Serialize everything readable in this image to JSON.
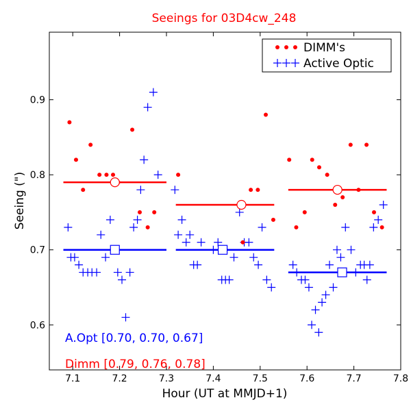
{
  "chart_data": {
    "type": "scatter",
    "title": "Seeings for 03D4cw_248",
    "xlabel": "Hour (UT at MMJD+1)",
    "ylabel": "Seeing (\")",
    "xlim": [
      7.05,
      7.8
    ],
    "ylim": [
      0.54,
      0.99
    ],
    "xticks": [
      7.1,
      7.2,
      7.3,
      7.4,
      7.5,
      7.6,
      7.7,
      7.8
    ],
    "xtick_labels": [
      "7.1",
      "7.2",
      "7.3",
      "7.4",
      "7.5",
      "7.6",
      "7.7",
      "7.8"
    ],
    "yticks": [
      0.6,
      0.7,
      0.8,
      0.9
    ],
    "ytick_labels": [
      "0.6",
      "0.7",
      "0.8",
      "0.9"
    ],
    "colors": {
      "dimm": "#ff0000",
      "aopt": "#0000ff"
    },
    "legend": {
      "position": "top-right",
      "entries": [
        "DIMM's",
        "Active Optic"
      ]
    },
    "annotations": {
      "aopt": "A.Opt [0.70, 0.70, 0.67]",
      "dimm": "Dimm [0.79, 0.76, 0.78]"
    },
    "series": [
      {
        "name": "DIMM's",
        "marker": "dot",
        "points": [
          [
            7.093,
            0.87
          ],
          [
            7.107,
            0.82
          ],
          [
            7.122,
            0.78
          ],
          [
            7.138,
            0.84
          ],
          [
            7.157,
            0.8
          ],
          [
            7.172,
            0.8
          ],
          [
            7.186,
            0.8
          ],
          [
            7.197,
            0.79
          ],
          [
            7.227,
            0.86
          ],
          [
            7.243,
            0.75
          ],
          [
            7.26,
            0.73
          ],
          [
            7.274,
            0.75
          ],
          [
            7.325,
            0.8
          ],
          [
            7.463,
            0.71
          ],
          [
            7.48,
            0.78
          ],
          [
            7.495,
            0.78
          ],
          [
            7.512,
            0.88
          ],
          [
            7.528,
            0.74
          ],
          [
            7.562,
            0.82
          ],
          [
            7.577,
            0.73
          ],
          [
            7.595,
            0.75
          ],
          [
            7.611,
            0.82
          ],
          [
            7.626,
            0.81
          ],
          [
            7.643,
            0.8
          ],
          [
            7.66,
            0.76
          ],
          [
            7.676,
            0.77
          ],
          [
            7.693,
            0.84
          ],
          [
            7.71,
            0.78
          ],
          [
            7.727,
            0.84
          ],
          [
            7.743,
            0.75
          ],
          [
            7.76,
            0.73
          ]
        ]
      },
      {
        "name": "Active Optic",
        "marker": "plus",
        "points": [
          [
            7.09,
            0.73
          ],
          [
            7.096,
            0.69
          ],
          [
            7.104,
            0.69
          ],
          [
            7.113,
            0.68
          ],
          [
            7.122,
            0.67
          ],
          [
            7.132,
            0.67
          ],
          [
            7.141,
            0.67
          ],
          [
            7.151,
            0.67
          ],
          [
            7.16,
            0.72
          ],
          [
            7.17,
            0.69
          ],
          [
            7.18,
            0.74
          ],
          [
            7.196,
            0.67
          ],
          [
            7.205,
            0.66
          ],
          [
            7.213,
            0.61
          ],
          [
            7.222,
            0.67
          ],
          [
            7.23,
            0.73
          ],
          [
            7.238,
            0.74
          ],
          [
            7.245,
            0.78
          ],
          [
            7.252,
            0.82
          ],
          [
            7.26,
            0.89
          ],
          [
            7.272,
            0.91
          ],
          [
            7.282,
            0.8
          ],
          [
            7.318,
            0.78
          ],
          [
            7.325,
            0.72
          ],
          [
            7.333,
            0.74
          ],
          [
            7.342,
            0.71
          ],
          [
            7.35,
            0.72
          ],
          [
            7.358,
            0.68
          ],
          [
            7.366,
            0.68
          ],
          [
            7.374,
            0.71
          ],
          [
            7.4,
            0.7
          ],
          [
            7.41,
            0.71
          ],
          [
            7.418,
            0.66
          ],
          [
            7.426,
            0.66
          ],
          [
            7.434,
            0.66
          ],
          [
            7.444,
            0.69
          ],
          [
            7.456,
            0.75
          ],
          [
            7.466,
            0.71
          ],
          [
            7.476,
            0.71
          ],
          [
            7.486,
            0.69
          ],
          [
            7.496,
            0.68
          ],
          [
            7.504,
            0.73
          ],
          [
            7.514,
            0.66
          ],
          [
            7.524,
            0.65
          ],
          [
            7.57,
            0.68
          ],
          [
            7.578,
            0.67
          ],
          [
            7.588,
            0.66
          ],
          [
            7.596,
            0.66
          ],
          [
            7.604,
            0.65
          ],
          [
            7.61,
            0.6
          ],
          [
            7.618,
            0.62
          ],
          [
            7.625,
            0.59
          ],
          [
            7.632,
            0.63
          ],
          [
            7.64,
            0.64
          ],
          [
            7.648,
            0.68
          ],
          [
            7.656,
            0.65
          ],
          [
            7.664,
            0.7
          ],
          [
            7.672,
            0.69
          ],
          [
            7.682,
            0.73
          ],
          [
            7.694,
            0.7
          ],
          [
            7.704,
            0.67
          ],
          [
            7.714,
            0.68
          ],
          [
            7.722,
            0.68
          ],
          [
            7.728,
            0.66
          ],
          [
            7.734,
            0.68
          ],
          [
            7.742,
            0.73
          ],
          [
            7.752,
            0.74
          ],
          [
            7.763,
            0.76
          ]
        ]
      }
    ],
    "means": {
      "dimm": [
        {
          "x0": 7.08,
          "x1": 7.3,
          "y": 0.79,
          "mx": 7.19
        },
        {
          "x0": 7.32,
          "x1": 7.53,
          "y": 0.76,
          "mx": 7.46
        },
        {
          "x0": 7.56,
          "x1": 7.77,
          "y": 0.78,
          "mx": 7.665
        }
      ],
      "aopt": [
        {
          "x0": 7.08,
          "x1": 7.3,
          "y": 0.7,
          "mx": 7.19
        },
        {
          "x0": 7.32,
          "x1": 7.53,
          "y": 0.7,
          "mx": 7.42
        },
        {
          "x0": 7.56,
          "x1": 7.77,
          "y": 0.67,
          "mx": 7.675
        }
      ]
    }
  }
}
